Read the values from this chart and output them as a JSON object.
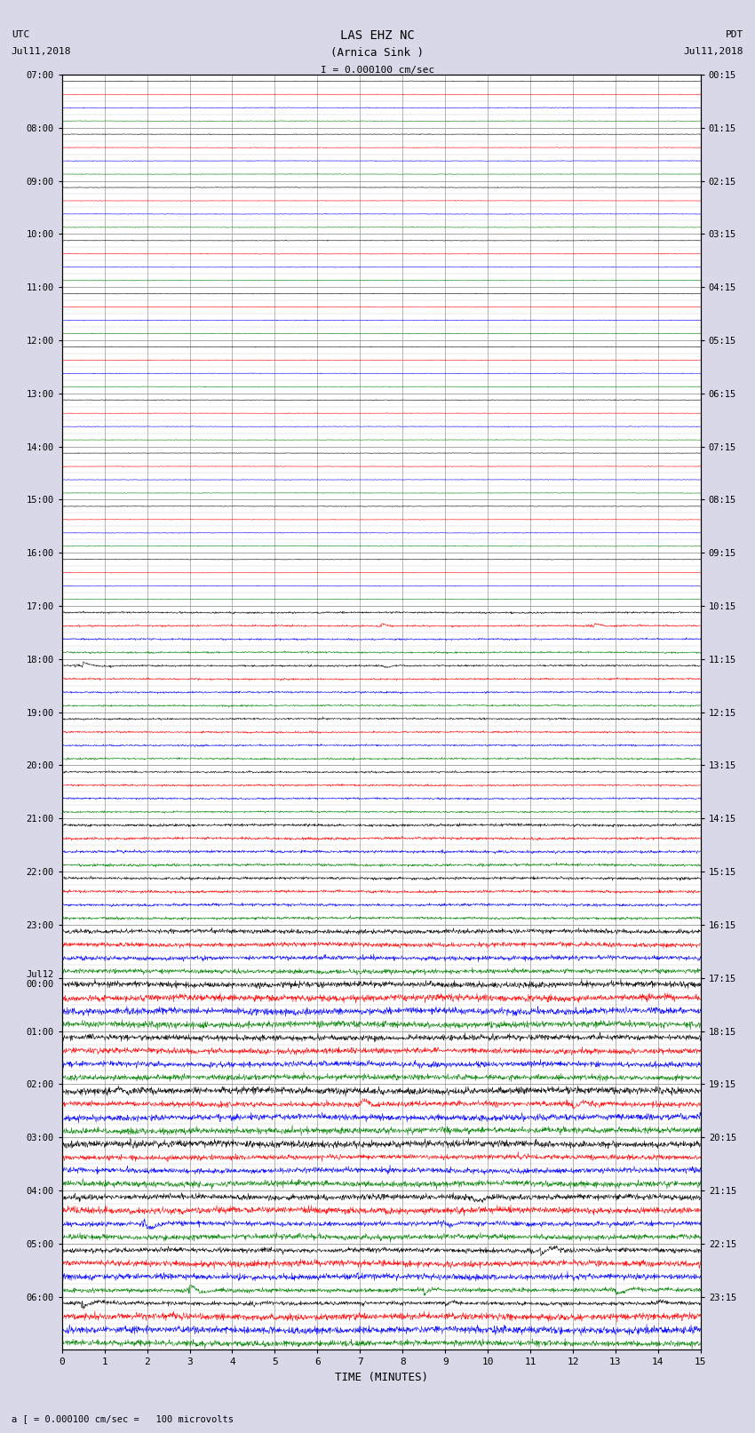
{
  "title_line1": "LAS EHZ NC",
  "title_line2": "(Arnica Sink )",
  "scale_label": "I = 0.000100 cm/sec",
  "utc_label": "UTC",
  "utc_date": "Jul11,2018",
  "pdt_label": "PDT",
  "pdt_date": "Jul11,2018",
  "bottom_label": "a [ = 0.000100 cm/sec =   100 microvolts",
  "xlabel": "TIME (MINUTES)",
  "num_time_rows": 24,
  "traces_per_row": 4,
  "minutes_per_row": 15,
  "left_labels": [
    "07:00",
    "08:00",
    "09:00",
    "10:00",
    "11:00",
    "12:00",
    "13:00",
    "14:00",
    "15:00",
    "16:00",
    "17:00",
    "18:00",
    "19:00",
    "20:00",
    "21:00",
    "22:00",
    "23:00",
    "Jul12\n00:00",
    "01:00",
    "02:00",
    "03:00",
    "04:00",
    "05:00",
    "06:00"
  ],
  "right_labels": [
    "00:15",
    "01:15",
    "02:15",
    "03:15",
    "04:15",
    "05:15",
    "06:15",
    "07:15",
    "08:15",
    "09:15",
    "10:15",
    "11:15",
    "12:15",
    "13:15",
    "14:15",
    "15:15",
    "16:15",
    "17:15",
    "18:15",
    "19:15",
    "20:15",
    "21:15",
    "22:15",
    "23:15"
  ],
  "colors_cycle": [
    "black",
    "red",
    "blue",
    "green"
  ],
  "bg_color": "#d8d8e8",
  "plot_bg": "white",
  "grid_color": "#999999",
  "fig_width": 8.5,
  "fig_height": 16.13,
  "row_amplitudes": [
    0.02,
    0.02,
    0.02,
    0.02,
    0.02,
    0.02,
    0.02,
    0.02,
    0.02,
    0.02,
    0.08,
    0.08,
    0.08,
    0.08,
    0.12,
    0.12,
    0.2,
    0.3,
    0.25,
    0.35,
    0.45,
    0.55,
    0.7,
    0.9
  ],
  "event_rows": {
    "10": {
      "trace": 1,
      "positions": [
        7.5,
        12.5
      ],
      "amplitudes": [
        0.8,
        0.7
      ]
    },
    "11": {
      "trace": 0,
      "positions": [
        0.5,
        7.5
      ],
      "amplitudes": [
        0.9,
        0.7
      ]
    },
    "19": {
      "trace": 1,
      "positions": [
        7.0,
        12.0
      ],
      "amplitudes": [
        0.6,
        0.5
      ]
    },
    "21": {
      "trace": 2,
      "positions": [
        2.0,
        9.0
      ],
      "amplitudes": [
        0.7,
        0.6
      ]
    },
    "22": {
      "trace": 3,
      "positions": [
        3.0,
        8.5,
        13.0
      ],
      "amplitudes": [
        0.8,
        0.6,
        0.5
      ]
    },
    "23": {
      "trace": 0,
      "positions": [
        0.5,
        4.5,
        9.0,
        14.0
      ],
      "amplitudes": [
        0.9,
        0.7,
        0.6,
        0.5
      ]
    }
  }
}
